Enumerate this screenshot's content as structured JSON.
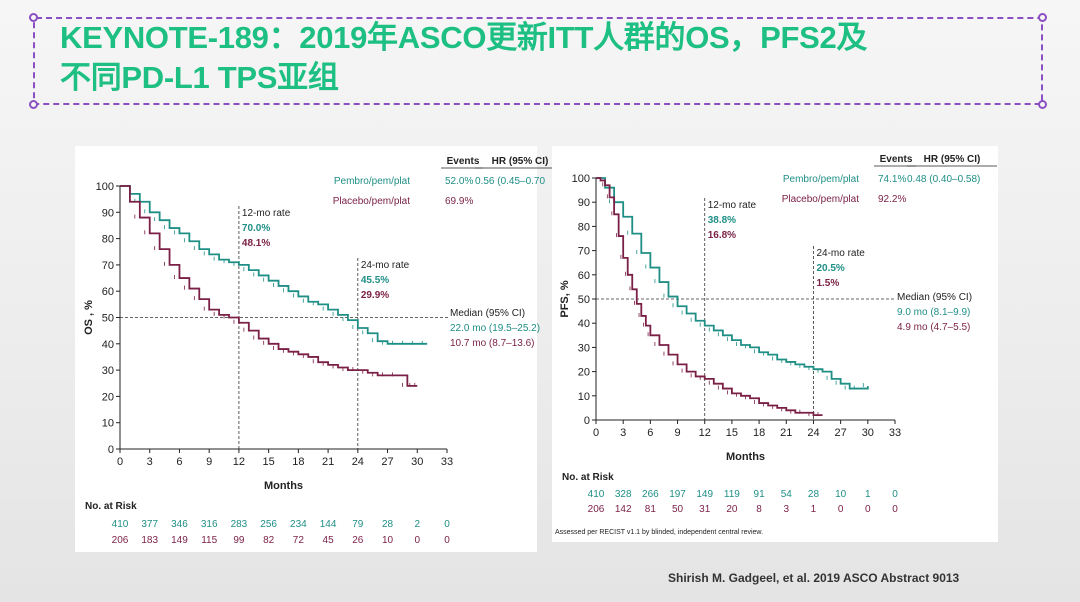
{
  "title": {
    "line1": "KEYNOTE-189：2019年ASCO更新ITT人群的OS，PFS2及",
    "line2": "不同PD-L1 TPS亚组"
  },
  "citation": "Shirish M. Gadgeel,  et al. 2019 ASCO Abstract 9013",
  "colors": {
    "pembro": "#1f8f86",
    "placebo": "#7a1f45",
    "title": "#1dbf82",
    "frame": "#8a4fc1"
  },
  "chart_data": [
    {
      "type": "line",
      "ylabel": "OS , %",
      "xlabel": "Months",
      "xlim": [
        0,
        33
      ],
      "ylim": [
        0,
        100
      ],
      "xticks": [
        0,
        3,
        6,
        9,
        12,
        15,
        18,
        21,
        24,
        27,
        30,
        33
      ],
      "yticks": [
        0,
        10,
        20,
        30,
        40,
        50,
        60,
        70,
        80,
        90,
        100
      ],
      "legend_headers": {
        "events": "Events",
        "hr": "HR (95% CI)"
      },
      "series": [
        {
          "name": "Pembro/pem/plat",
          "key": "pembro",
          "events": "52.0%",
          "hr": "0.56 (0.45–0.70",
          "x": [
            0,
            1,
            2,
            3,
            4,
            5,
            6,
            7,
            8,
            9,
            10,
            11,
            12,
            13,
            14,
            15,
            16,
            17,
            18,
            19,
            20,
            21,
            22,
            23,
            24,
            25,
            26,
            27,
            28,
            29,
            30,
            31
          ],
          "y": [
            100,
            97,
            94,
            90,
            87,
            84,
            82,
            79,
            76,
            74,
            72,
            71,
            70,
            68,
            66,
            64,
            62,
            60,
            58,
            56,
            55,
            53,
            51,
            49,
            46,
            44,
            41,
            40,
            40,
            40,
            40,
            40
          ]
        },
        {
          "name": "Placebo/pem/plat",
          "key": "placebo",
          "events": "69.9%",
          "hr": "",
          "x": [
            0,
            1,
            2,
            3,
            4,
            5,
            6,
            7,
            8,
            9,
            10,
            11,
            12,
            13,
            14,
            15,
            16,
            17,
            18,
            19,
            20,
            21,
            22,
            23,
            24,
            25,
            26,
            27,
            28,
            29,
            29.5,
            30
          ],
          "y": [
            100,
            94,
            88,
            82,
            76,
            70,
            65,
            61,
            57,
            53,
            51,
            50,
            48,
            45,
            42,
            40,
            38,
            37,
            36,
            35,
            33,
            32,
            31,
            30,
            30,
            29,
            28,
            28,
            28,
            24,
            24,
            24
          ]
        }
      ],
      "landmarks": [
        {
          "x": 12,
          "label": "12-mo rate",
          "pembro": "70.0%",
          "placebo": "48.1%"
        },
        {
          "x": 24,
          "label": "24-mo rate",
          "pembro": "45.5%",
          "placebo": "29.9%"
        }
      ],
      "median": {
        "label": "Median (95% CI)",
        "pembro": "22.0 mo (19.5–25.2)",
        "placebo": "10.7 mo (8.7–13.6)"
      },
      "at_risk": {
        "label": "No. at Risk",
        "pembro": [
          "410",
          "377",
          "346",
          "316",
          "283",
          "256",
          "234",
          "144",
          "79",
          "28",
          "2",
          "0"
        ],
        "placebo": [
          "206",
          "183",
          "149",
          "115",
          "99",
          "82",
          "72",
          "45",
          "26",
          "10",
          "0",
          "0"
        ]
      },
      "footnote": ""
    },
    {
      "type": "line",
      "ylabel": "PFS, %",
      "xlabel": "Months",
      "xlim": [
        0,
        33
      ],
      "ylim": [
        0,
        100
      ],
      "xticks": [
        0,
        3,
        6,
        9,
        12,
        15,
        18,
        21,
        24,
        27,
        30,
        33
      ],
      "yticks": [
        0,
        10,
        20,
        30,
        40,
        50,
        60,
        70,
        80,
        90,
        100
      ],
      "legend_headers": {
        "events": "Events",
        "hr": "HR (95% CI)"
      },
      "series": [
        {
          "name": "Pembro/pem/plat",
          "key": "pembro",
          "events": "74.1%",
          "hr": "0.48 (0.40–0.58)",
          "x": [
            0,
            1,
            2,
            3,
            4,
            5,
            6,
            7,
            8,
            9,
            10,
            11,
            12,
            13,
            14,
            15,
            16,
            17,
            18,
            19,
            20,
            21,
            22,
            23,
            24,
            25,
            26,
            27,
            28,
            29,
            30
          ],
          "y": [
            100,
            96,
            90,
            84,
            77,
            69,
            63,
            57,
            51,
            47,
            44,
            41,
            39,
            37,
            35,
            33,
            31,
            30,
            28,
            27,
            25,
            24,
            23,
            22,
            21,
            20,
            17,
            15,
            13,
            13,
            14
          ]
        },
        {
          "name": "Placebo/pem/plat",
          "key": "placebo",
          "events": "92.2%",
          "hr": "",
          "x": [
            0,
            0.5,
            1,
            1.5,
            2,
            2.5,
            3,
            3.5,
            4,
            4.5,
            5,
            5.5,
            6,
            7,
            8,
            9,
            10,
            11,
            12,
            13,
            14,
            15,
            16,
            17,
            18,
            19,
            20,
            21,
            22,
            23,
            24,
            25
          ],
          "y": [
            100,
            99,
            97,
            92,
            85,
            76,
            67,
            60,
            54,
            48,
            43,
            39,
            35,
            31,
            27,
            23,
            20,
            18,
            17,
            15,
            13,
            11,
            10,
            9,
            7,
            6,
            5,
            4,
            3,
            3,
            2,
            2
          ]
        }
      ],
      "landmarks": [
        {
          "x": 12,
          "label": "12-mo rate",
          "pembro": "38.8%",
          "placebo": "16.8%"
        },
        {
          "x": 24,
          "label": "24-mo rate",
          "pembro": "20.5%",
          "placebo": "1.5%"
        }
      ],
      "median": {
        "label": "Median (95% CI)",
        "pembro": "9.0 mo (8.1–9.9)",
        "placebo": "4.9 mo (4.7–5.5)"
      },
      "at_risk": {
        "label": "No. at Risk",
        "pembro": [
          "410",
          "328",
          "266",
          "197",
          "149",
          "119",
          "91",
          "54",
          "28",
          "10",
          "1",
          "0"
        ],
        "placebo": [
          "206",
          "142",
          "81",
          "50",
          "31",
          "20",
          "8",
          "3",
          "1",
          "0",
          "0",
          "0"
        ]
      },
      "footnote": "Assessed per RECIST v1.1 by blinded, independent central review."
    }
  ]
}
